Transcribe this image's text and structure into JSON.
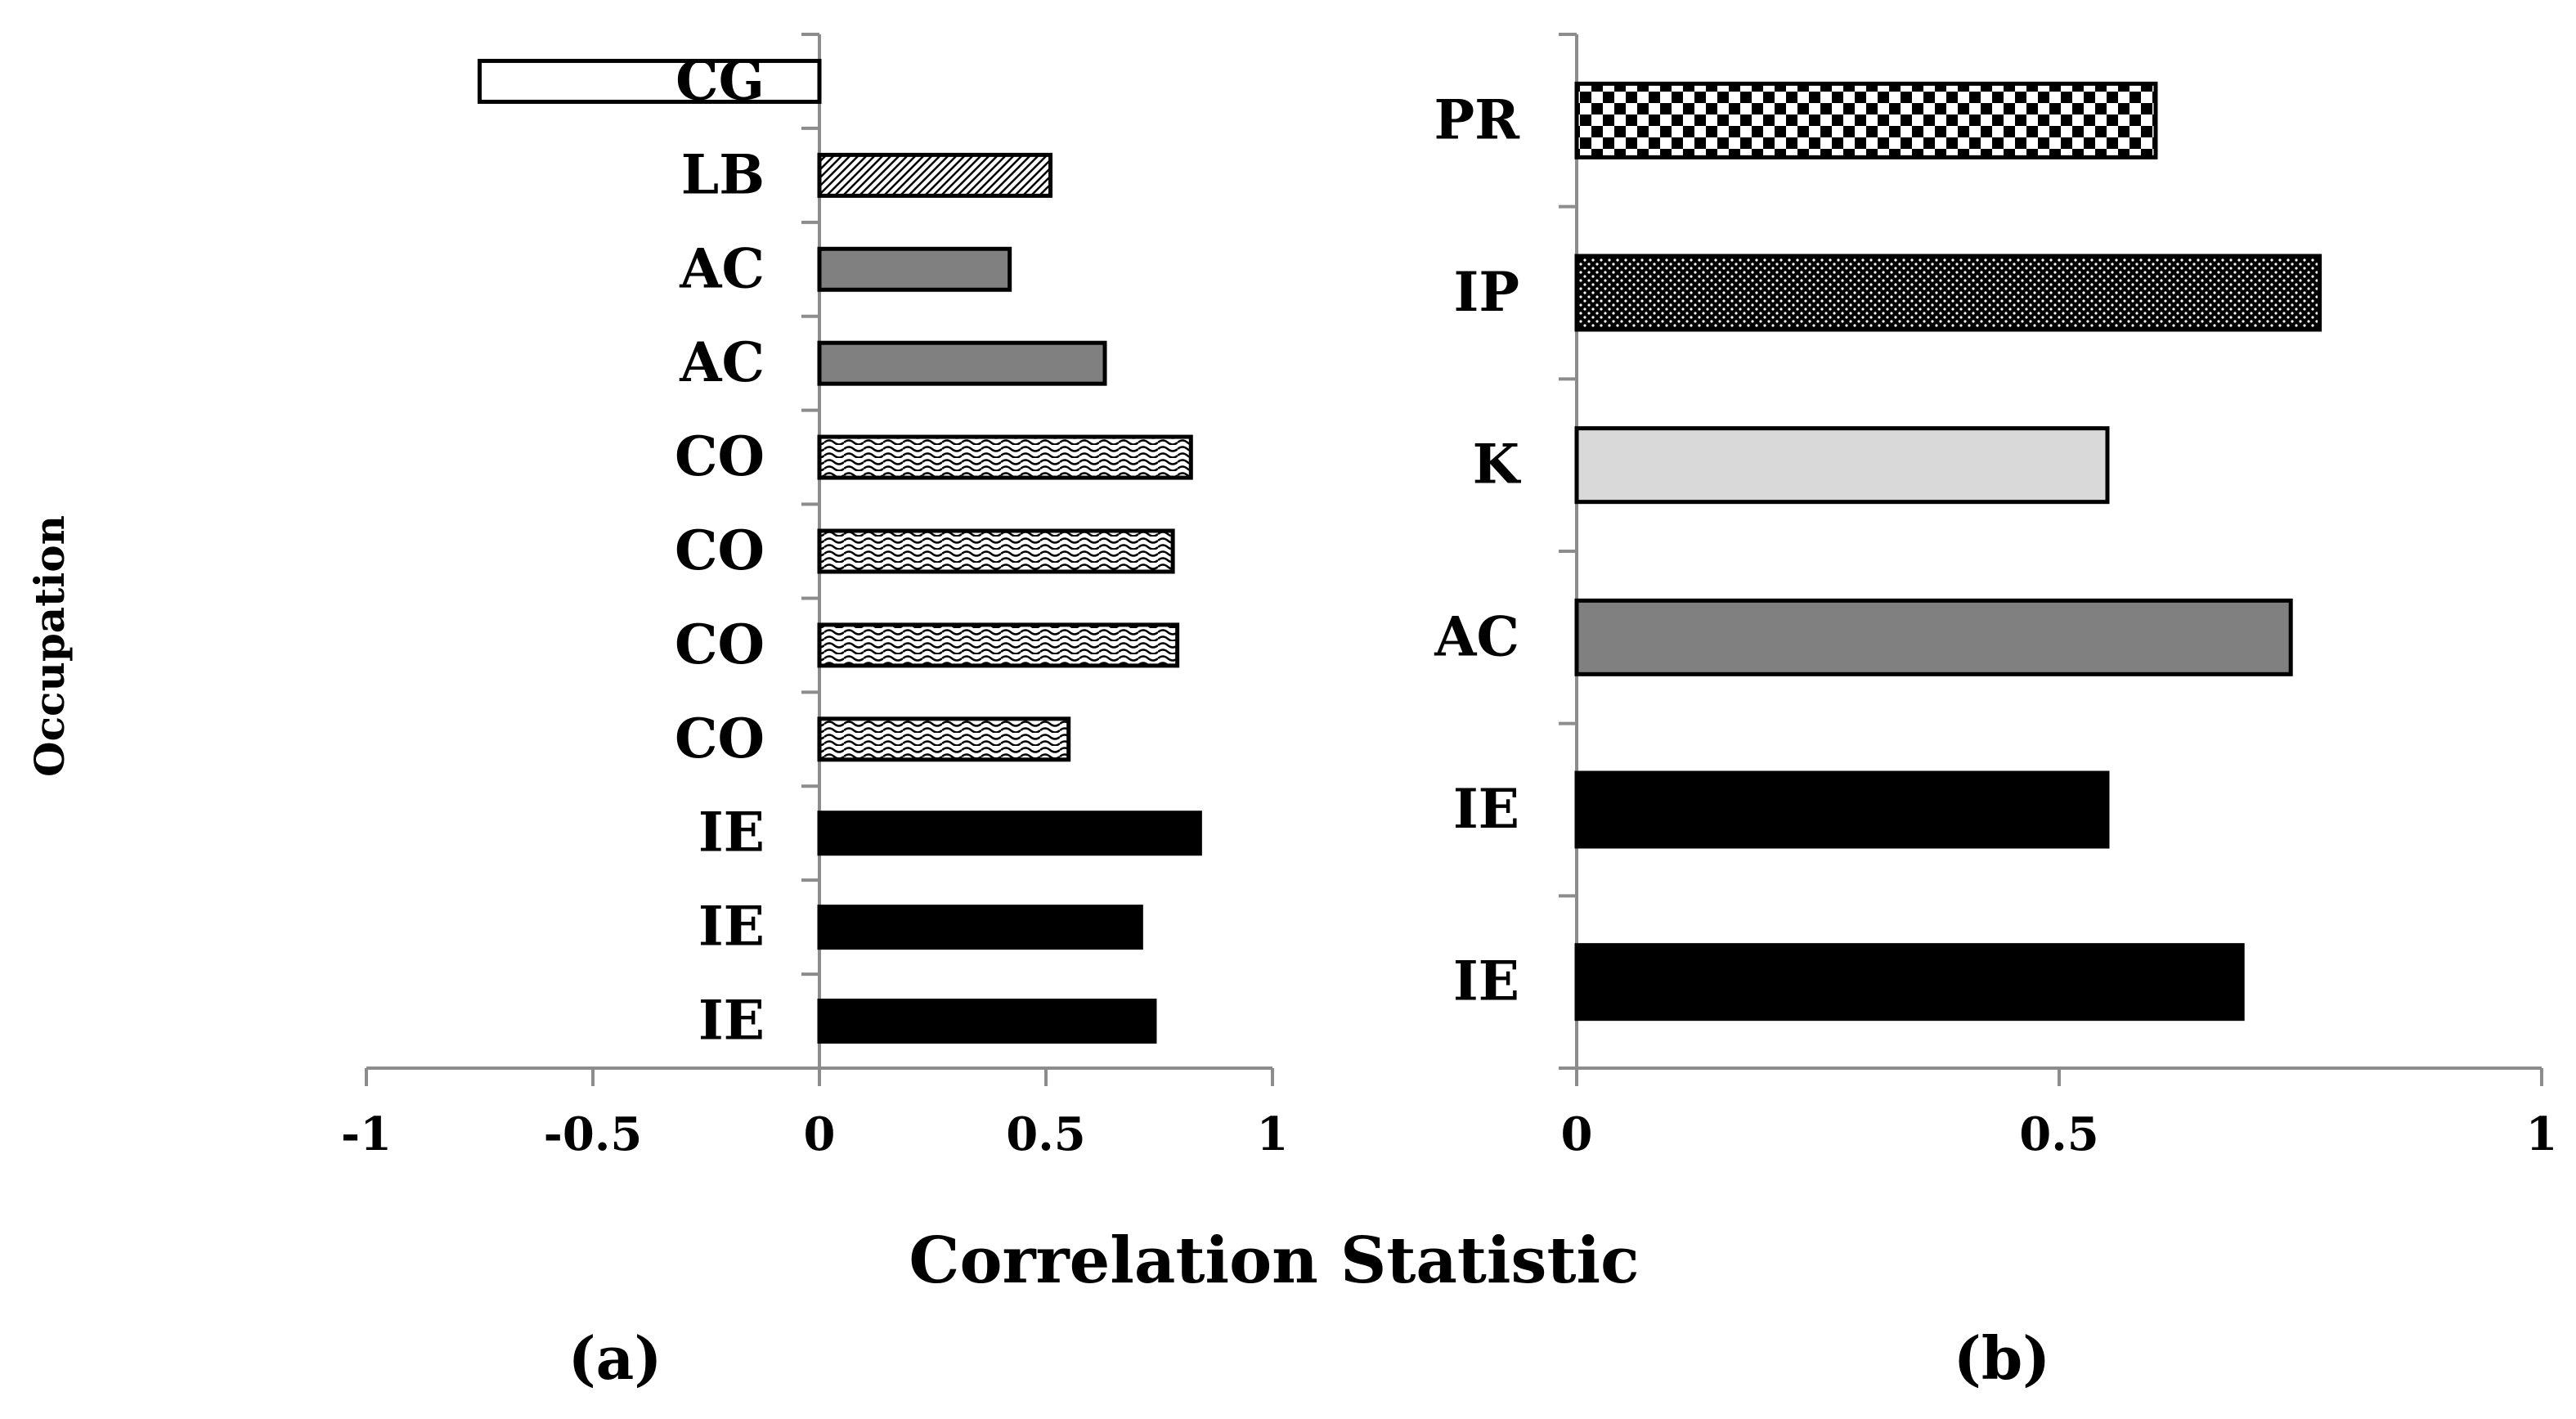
{
  "chart_data": [
    {
      "type": "bar",
      "orientation": "horizontal",
      "panel_label": "(a)",
      "categories": [
        "CG",
        "LB",
        "AC",
        "AC",
        "CO",
        "CO",
        "CO",
        "CO",
        "IE",
        "IE",
        "IE"
      ],
      "values": [
        -0.75,
        0.51,
        0.42,
        0.63,
        0.82,
        0.78,
        0.79,
        0.55,
        0.84,
        0.71,
        0.74
      ],
      "patterns": [
        "white",
        "diagonal",
        "gray",
        "gray",
        "wave",
        "wave",
        "wave",
        "wave",
        "black",
        "black",
        "black"
      ],
      "xlim": [
        -1,
        1
      ],
      "xticks": [
        -1,
        -0.5,
        0,
        0.5,
        1
      ],
      "xtick_labels": [
        "-1",
        "-0.5",
        "0",
        "0.5",
        "1"
      ],
      "ylabel": "Occupation",
      "grid": false
    },
    {
      "type": "bar",
      "orientation": "horizontal",
      "panel_label": "(b)",
      "categories": [
        "PR",
        "IP",
        "K",
        "AC",
        "IE",
        "IE"
      ],
      "values": [
        0.6,
        0.77,
        0.55,
        0.74,
        0.55,
        0.69
      ],
      "patterns": [
        "checker",
        "dots",
        "lightgray",
        "gray",
        "black",
        "black"
      ],
      "xlim": [
        0,
        1
      ],
      "xticks": [
        0,
        0.5,
        1
      ],
      "xtick_labels": [
        "0",
        "0.5",
        "1"
      ],
      "grid": false
    }
  ],
  "xlabel": "Correlation Statistic",
  "colors": {
    "axis": "#8c8c8c",
    "bar_black": "#000000",
    "bar_gray": "#808080",
    "bar_lightgray": "#d9d9d9",
    "bar_white": "#ffffff"
  }
}
